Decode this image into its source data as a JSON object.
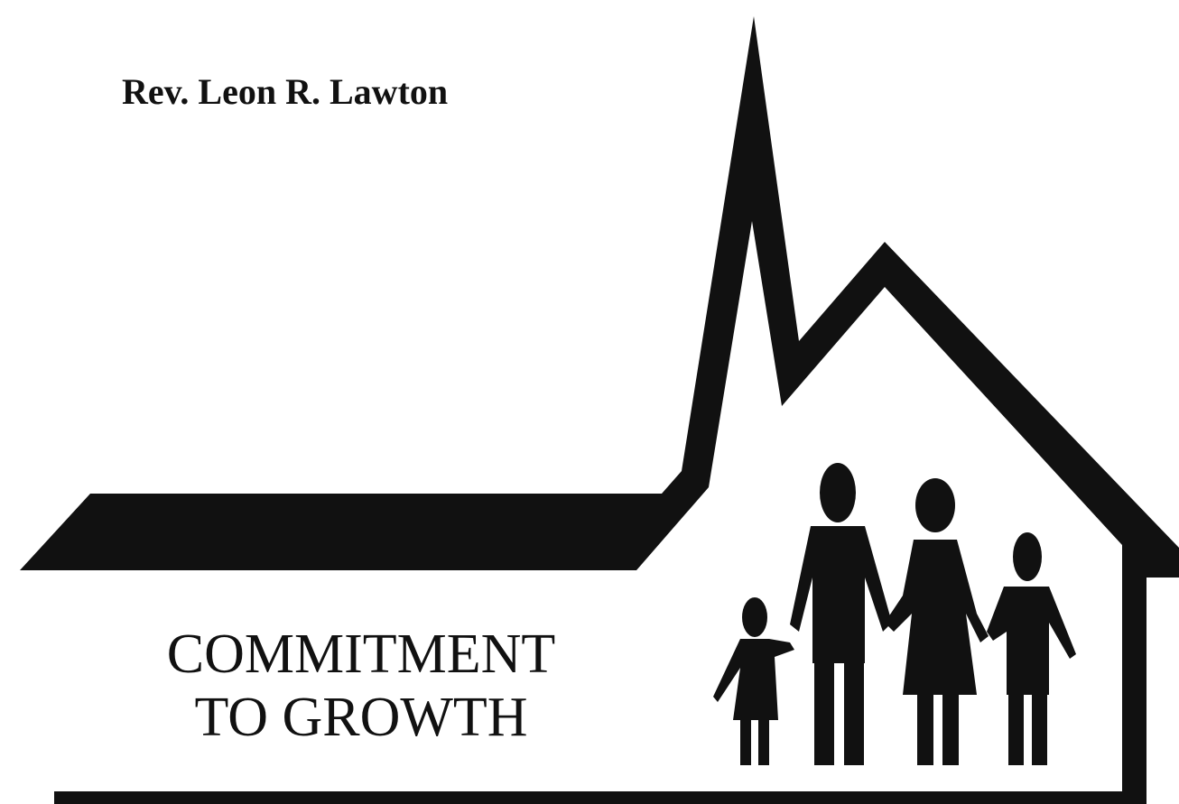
{
  "author": "Rev. Leon R. Lawton",
  "title": [
    "COMMITMENT",
    "TO GROWTH"
  ]
}
